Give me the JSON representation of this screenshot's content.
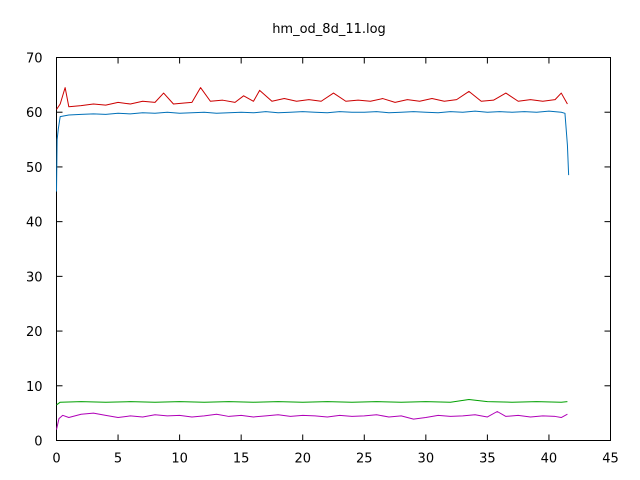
{
  "chart_data": {
    "type": "line",
    "title": "hm_od_8d_11.log",
    "xlabel": "",
    "ylabel": "",
    "xlim": [
      0,
      45
    ],
    "ylim": [
      0,
      70
    ],
    "xticks": [
      0,
      5,
      10,
      15,
      20,
      25,
      30,
      35,
      40,
      45
    ],
    "yticks": [
      0,
      10,
      20,
      30,
      40,
      50,
      60,
      70
    ],
    "grid": false,
    "legend": "none",
    "series": [
      {
        "color": "#cc0000",
        "x": [
          0.0,
          0.3,
          0.7,
          1.0,
          2.0,
          3.0,
          4.0,
          5.0,
          6.0,
          7.0,
          8.0,
          8.7,
          9.5,
          10.5,
          11.0,
          11.7,
          12.5,
          13.5,
          14.5,
          15.2,
          16.0,
          16.5,
          17.5,
          18.5,
          19.5,
          20.5,
          21.5,
          22.5,
          23.5,
          24.5,
          25.5,
          26.5,
          27.5,
          28.5,
          29.5,
          30.5,
          31.5,
          32.5,
          33.5,
          34.5,
          35.5,
          36.5,
          37.5,
          38.5,
          39.5,
          40.5,
          41.0,
          41.5
        ],
        "y": [
          60.5,
          61.5,
          64.5,
          61.0,
          61.2,
          61.5,
          61.3,
          61.8,
          61.5,
          62.0,
          61.8,
          63.5,
          61.5,
          61.7,
          61.8,
          64.5,
          62.0,
          62.2,
          61.8,
          63.0,
          62.0,
          64.0,
          62.0,
          62.5,
          62.0,
          62.3,
          62.0,
          63.5,
          62.0,
          62.2,
          62.0,
          62.5,
          61.8,
          62.3,
          62.0,
          62.5,
          62.0,
          62.3,
          63.8,
          62.0,
          62.2,
          63.5,
          62.0,
          62.3,
          62.0,
          62.3,
          63.5,
          61.5
        ]
      },
      {
        "color": "#0070b8",
        "x": [
          0.0,
          0.05,
          0.15,
          0.3,
          1.0,
          2.0,
          3.0,
          4.0,
          5.0,
          6.0,
          7.0,
          8.0,
          9.0,
          10.0,
          11.0,
          12.0,
          13.0,
          14.0,
          15.0,
          16.0,
          17.0,
          18.0,
          19.0,
          20.0,
          21.0,
          22.0,
          23.0,
          24.0,
          25.0,
          26.0,
          27.0,
          28.0,
          29.0,
          30.0,
          31.0,
          32.0,
          33.0,
          34.0,
          35.0,
          36.0,
          37.0,
          38.0,
          39.0,
          40.0,
          41.0,
          41.3,
          41.5,
          41.6
        ],
        "y": [
          45.5,
          55.0,
          57.0,
          59.2,
          59.5,
          59.6,
          59.7,
          59.6,
          59.8,
          59.7,
          59.9,
          59.8,
          60.0,
          59.8,
          59.9,
          60.0,
          59.8,
          59.9,
          60.0,
          59.9,
          60.1,
          59.9,
          60.0,
          60.1,
          60.0,
          59.9,
          60.1,
          60.0,
          60.0,
          60.1,
          59.9,
          60.0,
          60.1,
          60.0,
          59.9,
          60.1,
          60.0,
          60.2,
          60.0,
          60.1,
          60.0,
          60.1,
          60.0,
          60.2,
          60.0,
          59.8,
          54.0,
          48.5
        ]
      },
      {
        "color": "#00a000",
        "x": [
          0.0,
          0.3,
          2.0,
          4.0,
          6.0,
          8.0,
          10.0,
          12.0,
          14.0,
          16.0,
          18.0,
          20.0,
          22.0,
          24.0,
          26.0,
          28.0,
          30.0,
          32.0,
          33.5,
          35.0,
          37.0,
          39.0,
          41.0,
          41.5
        ],
        "y": [
          6.5,
          7.0,
          7.1,
          7.0,
          7.1,
          7.0,
          7.1,
          7.0,
          7.1,
          7.0,
          7.1,
          7.0,
          7.1,
          7.0,
          7.1,
          7.0,
          7.1,
          7.0,
          7.5,
          7.1,
          7.0,
          7.1,
          7.0,
          7.1
        ]
      },
      {
        "color": "#b000b8",
        "x": [
          0.0,
          0.2,
          0.5,
          1.0,
          2.0,
          3.0,
          4.0,
          5.0,
          6.0,
          7.0,
          8.0,
          9.0,
          10.0,
          11.0,
          12.0,
          13.0,
          14.0,
          15.0,
          16.0,
          17.0,
          18.0,
          19.0,
          20.0,
          21.0,
          22.0,
          23.0,
          24.0,
          25.0,
          26.0,
          27.0,
          28.0,
          29.0,
          30.0,
          31.0,
          32.0,
          33.0,
          34.0,
          35.0,
          35.8,
          36.5,
          37.5,
          38.5,
          39.5,
          40.5,
          41.0,
          41.5
        ],
        "y": [
          2.0,
          4.0,
          4.6,
          4.2,
          4.8,
          5.0,
          4.6,
          4.2,
          4.5,
          4.3,
          4.7,
          4.5,
          4.6,
          4.3,
          4.5,
          4.8,
          4.4,
          4.6,
          4.3,
          4.5,
          4.7,
          4.4,
          4.6,
          4.5,
          4.3,
          4.6,
          4.4,
          4.5,
          4.7,
          4.3,
          4.5,
          3.9,
          4.2,
          4.6,
          4.4,
          4.5,
          4.7,
          4.3,
          5.3,
          4.4,
          4.6,
          4.3,
          4.5,
          4.4,
          4.2,
          4.8
        ]
      }
    ]
  }
}
